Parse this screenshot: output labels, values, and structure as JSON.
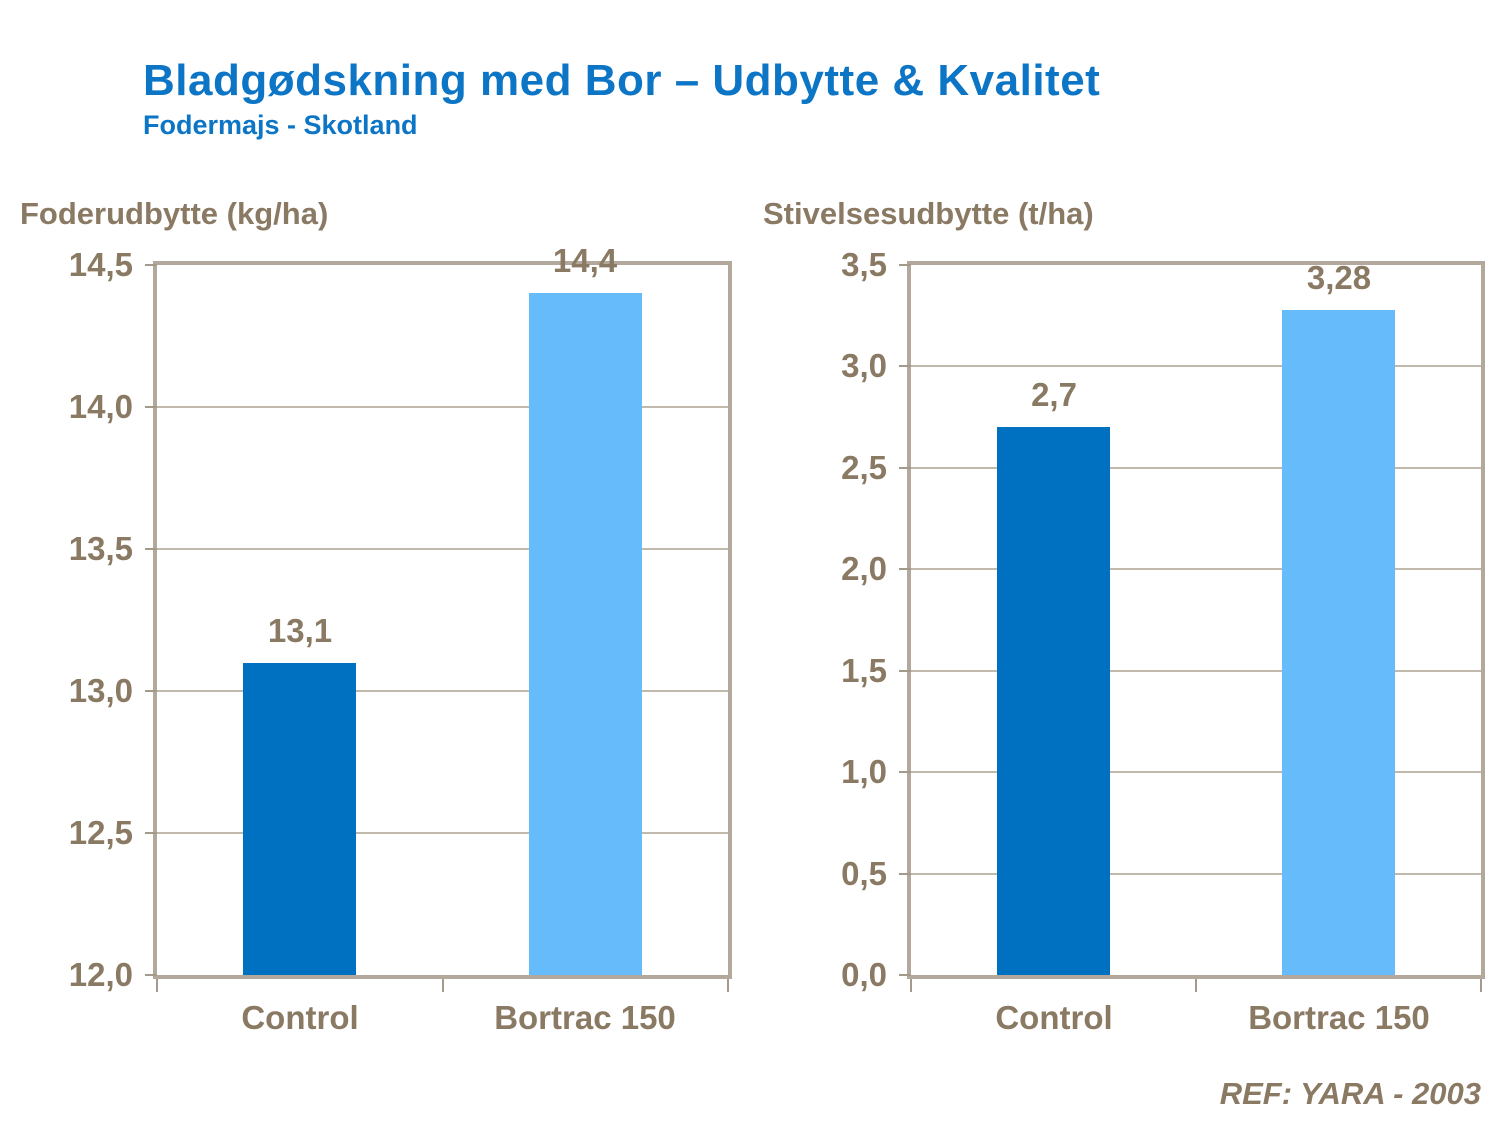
{
  "title": "Bladgødskning med Bor – Udbytte & Kvalitet",
  "subtitle": "Fodermajs - Skotland",
  "footer": "REF: YARA - 2003",
  "colors": {
    "title_blue": "#0D75C5",
    "axis_text_brown": "#8A7A63",
    "frame_tan": "#B2A89B",
    "gridline_tan": "#C2B9AD",
    "bar_control_dark_blue": "#0070C0",
    "bar_bortrac_light_blue": "#66BBFB"
  },
  "chart_data": [
    {
      "type": "bar",
      "title": "Foderudbytte (kg/ha)",
      "categories": [
        "Control",
        "Bortrac 150"
      ],
      "values": [
        13.1,
        14.4
      ],
      "value_labels": [
        "13,1",
        "14,4"
      ],
      "bar_colors": [
        "#0070C0",
        "#66BBFB"
      ],
      "ylim": [
        12.0,
        14.5
      ],
      "ytick_step": 0.5,
      "ytick_labels": [
        "12,0",
        "12,5",
        "13,0",
        "13,5",
        "14,0",
        "14,5"
      ],
      "grid": true,
      "legend": "none"
    },
    {
      "type": "bar",
      "title": "Stivelsesudbytte (t/ha)",
      "categories": [
        "Control",
        "Bortrac 150"
      ],
      "values": [
        2.7,
        3.28
      ],
      "value_labels": [
        "2,7",
        "3,28"
      ],
      "bar_colors": [
        "#0070C0",
        "#66BBFB"
      ],
      "ylim": [
        0.0,
        3.5
      ],
      "ytick_step": 0.5,
      "ytick_labels": [
        "0,0",
        "0,5",
        "1,0",
        "1,5",
        "2,0",
        "2,5",
        "3,0",
        "3,5"
      ],
      "grid": true,
      "legend": "none"
    }
  ]
}
